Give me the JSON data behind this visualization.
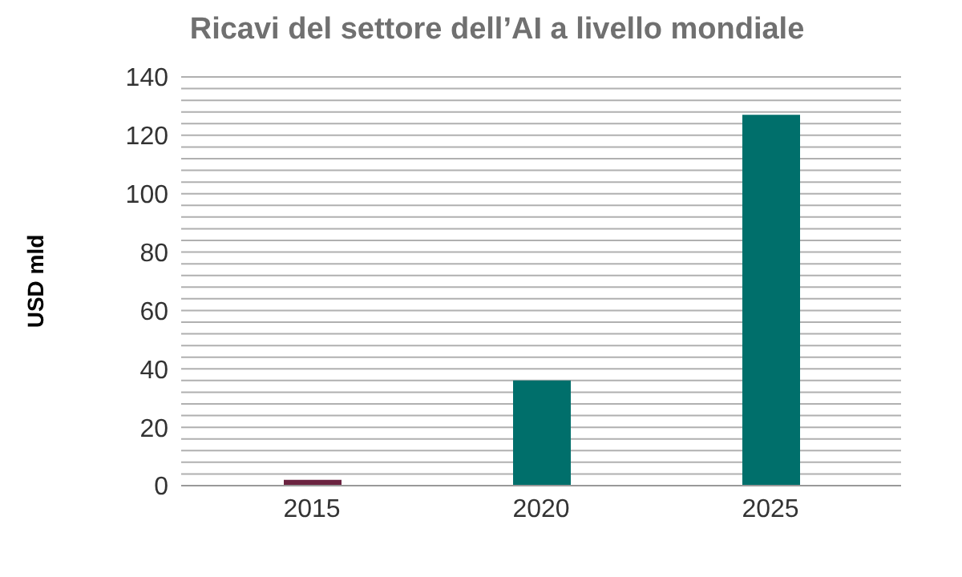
{
  "chart_data": {
    "type": "bar",
    "title": "Ricavi del settore dell’AI a livello mondiale",
    "ylabel": "USD mld",
    "categories": [
      "2015",
      "2020",
      "2025"
    ],
    "values": [
      2,
      36,
      127
    ],
    "colors": [
      "#6b2340",
      "#006f6b",
      "#006f6b"
    ],
    "ylim": [
      0,
      140
    ],
    "yticks": [
      0,
      {
        "value": 4,
        "label": null
      },
      {
        "value": 8,
        "label": null
      },
      {
        "value": 12,
        "label": null
      },
      {
        "value": 16,
        "label": null
      },
      20,
      {
        "value": 24,
        "label": null
      },
      {
        "value": 28,
        "label": null
      },
      {
        "value": 32,
        "label": null
      },
      {
        "value": 36,
        "label": null
      },
      40,
      {
        "value": 44,
        "label": null
      },
      {
        "value": 48,
        "label": null
      },
      {
        "value": 52,
        "label": null
      },
      {
        "value": 56,
        "label": null
      },
      60,
      {
        "value": 64,
        "label": null
      },
      {
        "value": 68,
        "label": null
      },
      {
        "value": 72,
        "label": null
      },
      {
        "value": 76,
        "label": null
      },
      80,
      {
        "value": 84,
        "label": null
      },
      {
        "value": 88,
        "label": null
      },
      {
        "value": 92,
        "label": null
      },
      {
        "value": 96,
        "label": null
      },
      100,
      {
        "value": 104,
        "label": null
      },
      {
        "value": 108,
        "label": null
      },
      {
        "value": 112,
        "label": null
      },
      {
        "value": 116,
        "label": null
      },
      120,
      {
        "value": 124,
        "label": null
      },
      {
        "value": 128,
        "label": null
      },
      {
        "value": 132,
        "label": null
      },
      {
        "value": 136,
        "label": null
      },
      140
    ],
    "grid": "y"
  }
}
